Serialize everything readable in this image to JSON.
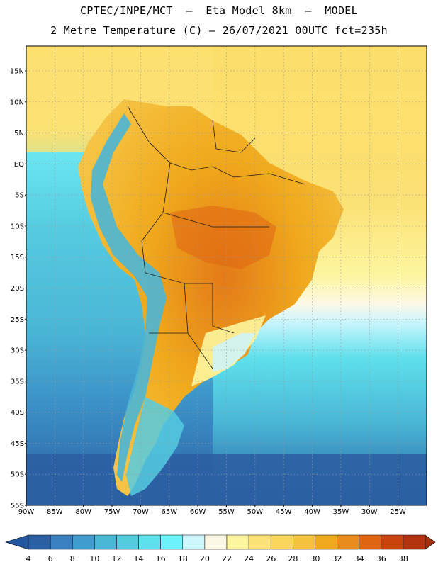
{
  "header": {
    "line1": "CPTEC/INPE/MCT  –  Eta Model 8km  –  MODEL",
    "line2": "2 Metre Temperature (C) – 26/07/2021 00UTC fct=235h"
  },
  "map": {
    "region": "South America",
    "lat_labels": [
      "15N",
      "10N",
      "5N",
      "EQ",
      "5S",
      "10S",
      "15S",
      "20S",
      "25S",
      "30S",
      "35S",
      "40S",
      "45S",
      "50S",
      "55S"
    ],
    "lon_labels": [
      "90W",
      "85W",
      "80W",
      "75W",
      "70W",
      "65W",
      "60W",
      "55W",
      "50W",
      "45W",
      "40W",
      "35W",
      "30W",
      "25W"
    ],
    "lat_range": [
      -55,
      19
    ],
    "lon_range": [
      -90,
      -20
    ],
    "grid": true
  },
  "colorbar": {
    "labels": [
      "4",
      "6",
      "8",
      "10",
      "12",
      "14",
      "16",
      "18",
      "20",
      "22",
      "24",
      "26",
      "28",
      "30",
      "32",
      "34",
      "36",
      "38"
    ],
    "colors": [
      "#2b5fa3",
      "#3a7fbf",
      "#3f9ccc",
      "#4ab6d6",
      "#55cbe0",
      "#5ee0ec",
      "#6cf2fa",
      "#ccf5fc",
      "#fdf8e6",
      "#fdf59e",
      "#fbe277",
      "#f9d55c",
      "#f4c23f",
      "#f0a91c",
      "#ea8c1d",
      "#e06412",
      "#c9430c",
      "#b33310"
    ],
    "under_color": "#2257a0",
    "over_color": "#a4300e"
  },
  "legend_title": ""
}
